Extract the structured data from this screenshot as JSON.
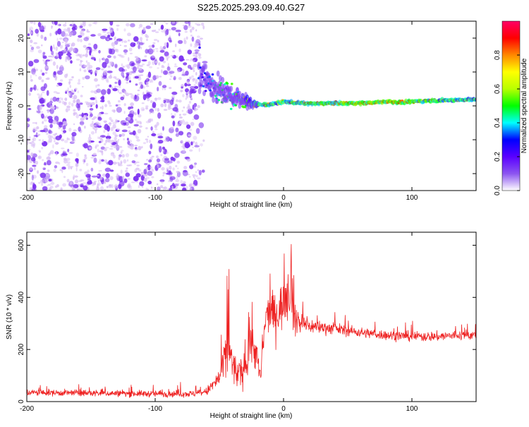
{
  "title": "S225.2025.293.09.40.G27",
  "colors": {
    "snr_line": "#ee2222",
    "axis": "#000000",
    "noise_light": "#d9bff5",
    "noise_dark": "#7a2ff0",
    "colorbar_stops": [
      "#ffffff",
      "#8c55f0",
      "#5a00ff",
      "#0000ff",
      "#00ffff",
      "#00ff00",
      "#b8ff00",
      "#ffff00",
      "#ff8800",
      "#ff0000",
      "#ff0066"
    ]
  },
  "chart_data": [
    {
      "type": "heatmap",
      "name": "spectrogram",
      "xlabel": "Height of straight line (km)",
      "ylabel": "Frequency (Hz)",
      "xlim": [
        -200,
        150
      ],
      "ylim": [
        -25,
        25
      ],
      "xticks": [
        -200,
        -100,
        0,
        100
      ],
      "xtick_labels": [
        "-200",
        "-100",
        "0",
        "100"
      ],
      "yticks": [
        -20,
        -10,
        0,
        10,
        20
      ],
      "ytick_labels": [
        "-20",
        "-10",
        "0",
        "10",
        "20"
      ],
      "noise_region": {
        "x_range": [
          -200,
          -65
        ],
        "y_range": [
          -25,
          25
        ]
      },
      "ridge": {
        "x": [
          -65,
          -58,
          -50,
          -44,
          -38,
          -32,
          -26,
          -20,
          -12,
          -5,
          0,
          10,
          20,
          30,
          40,
          50,
          60,
          70,
          80,
          90,
          100,
          110,
          120,
          130,
          140,
          150
        ],
        "freq": [
          9.5,
          6.5,
          4.5,
          3.5,
          2.5,
          1.5,
          0.8,
          0.3,
          0.4,
          0.8,
          1.2,
          0.9,
          0.7,
          0.7,
          0.8,
          0.8,
          0.8,
          0.9,
          1.3,
          1.0,
          1.2,
          1.5,
          1.6,
          1.7,
          1.8,
          1.9
        ],
        "amplitude": [
          0.35,
          0.4,
          0.5,
          0.55,
          0.55,
          0.6,
          0.75,
          0.85,
          0.85,
          0.8,
          0.85,
          0.85,
          0.9,
          0.9,
          0.9,
          0.95,
          0.95,
          0.95,
          0.95,
          0.95,
          0.9,
          0.9,
          0.85,
          0.85,
          0.85,
          0.85
        ]
      },
      "colorbar": {
        "label": "Normalized spectral amplitude",
        "ticks": [
          0.0,
          0.2,
          0.4,
          0.6,
          0.8
        ],
        "tick_labels": [
          "0.0",
          "0.2",
          "0.4",
          "0.6",
          "0.8"
        ],
        "range": [
          0,
          1
        ]
      }
    },
    {
      "type": "line",
      "name": "snr",
      "xlabel": "Height of straight line (km)",
      "ylabel": "SNR (10 * v/v)",
      "xlim": [
        -200,
        150
      ],
      "ylim": [
        0,
        650
      ],
      "xticks": [
        -200,
        -100,
        0,
        100
      ],
      "xtick_labels": [
        "-200",
        "-100",
        "0",
        "100"
      ],
      "yticks": [
        0,
        200,
        400,
        600
      ],
      "ytick_labels": [
        "0",
        "200",
        "400",
        "600"
      ],
      "envelope": {
        "x": [
          -200,
          -100,
          -70,
          -60,
          -50,
          -46,
          -44,
          -42,
          -38,
          -34,
          -30,
          -26,
          -22,
          -18,
          -14,
          -10,
          -6,
          -2,
          2,
          6,
          8,
          10,
          14,
          20,
          30,
          40,
          60,
          80,
          100,
          120,
          140,
          150
        ],
        "mean": [
          35,
          30,
          30,
          38,
          90,
          160,
          200,
          180,
          120,
          100,
          130,
          230,
          200,
          90,
          320,
          350,
          330,
          360,
          430,
          420,
          330,
          310,
          300,
          290,
          285,
          280,
          265,
          255,
          250,
          250,
          255,
          255
        ],
        "spread": [
          20,
          20,
          20,
          25,
          60,
          120,
          200,
          140,
          100,
          90,
          100,
          130,
          120,
          80,
          100,
          120,
          130,
          140,
          200,
          160,
          130,
          80,
          60,
          45,
          40,
          35,
          30,
          30,
          30,
          30,
          30,
          30
        ]
      }
    }
  ]
}
